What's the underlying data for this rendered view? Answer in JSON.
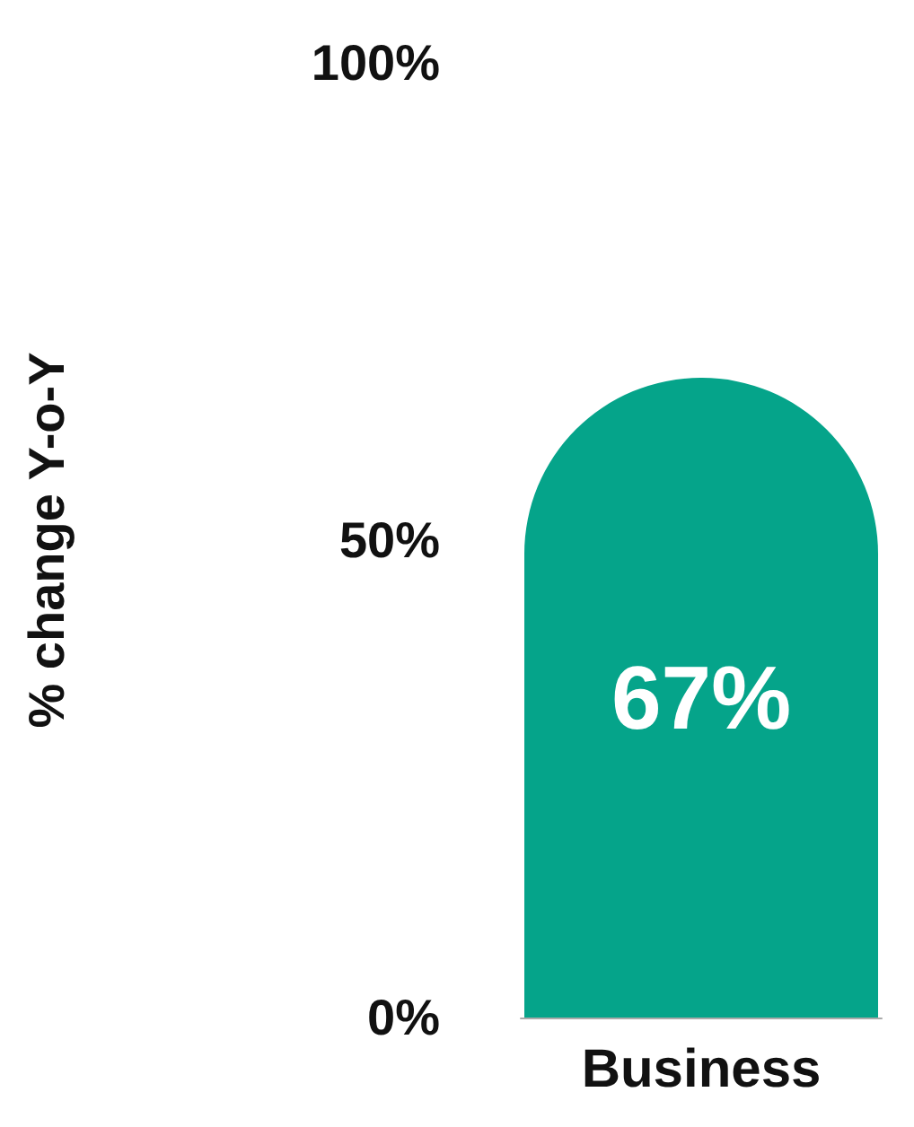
{
  "chart_data": {
    "type": "bar",
    "ylabel": "% change Y-o-Y",
    "categories": [
      "Business"
    ],
    "values": [
      67
    ],
    "value_labels": [
      "67%"
    ],
    "color": "#05a48a",
    "ylim": [
      0,
      100
    ],
    "yticks": [
      {
        "value": 0,
        "label": "0%"
      },
      {
        "value": 50,
        "label": "50%"
      },
      {
        "value": 100,
        "label": "100%"
      }
    ],
    "grid": false
  }
}
